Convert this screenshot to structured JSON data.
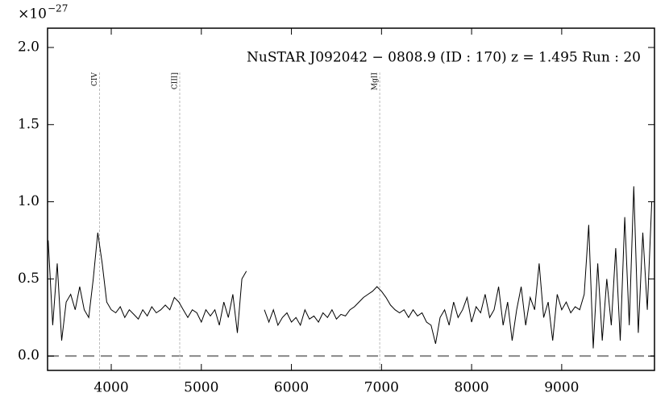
{
  "chart_data": {
    "type": "line",
    "title": "NuSTAR J092042 − 0808.9 (ID : 170)   z = 1.495   Run : 20",
    "offset_label": "×10",
    "offset_exponent": "−27",
    "x": [
      3300,
      3350,
      3400,
      3450,
      3500,
      3550,
      3600,
      3650,
      3700,
      3750,
      3800,
      3850,
      3900,
      3950,
      4000,
      4050,
      4100,
      4150,
      4200,
      4250,
      4300,
      4350,
      4400,
      4450,
      4500,
      4550,
      4600,
      4650,
      4700,
      4750,
      4800,
      4850,
      4900,
      4950,
      5000,
      5050,
      5100,
      5150,
      5200,
      5250,
      5300,
      5350,
      5400,
      5450,
      5500,
      5600,
      5700,
      5750,
      5800,
      5850,
      5900,
      5950,
      6000,
      6050,
      6100,
      6150,
      6200,
      6250,
      6300,
      6350,
      6400,
      6450,
      6500,
      6550,
      6600,
      6650,
      6700,
      6750,
      6800,
      6850,
      6900,
      6950,
      7000,
      7050,
      7100,
      7150,
      7200,
      7250,
      7300,
      7350,
      7400,
      7450,
      7500,
      7550,
      7600,
      7650,
      7700,
      7750,
      7800,
      7850,
      7900,
      7950,
      8000,
      8050,
      8100,
      8150,
      8200,
      8250,
      8300,
      8350,
      8400,
      8450,
      8500,
      8550,
      8600,
      8650,
      8700,
      8750,
      8800,
      8850,
      8900,
      8950,
      9000,
      9050,
      9100,
      9150,
      9200,
      9250,
      9300,
      9350,
      9400,
      9450,
      9500,
      9550,
      9600,
      9650,
      9700,
      9750,
      9800,
      9850,
      9900,
      9950,
      10000
    ],
    "series": [
      {
        "color": "#000000",
        "values": [
          0.75,
          0.2,
          0.6,
          0.1,
          0.35,
          0.4,
          0.3,
          0.45,
          0.3,
          0.25,
          0.5,
          0.8,
          0.6,
          0.35,
          0.3,
          0.28,
          0.32,
          0.25,
          0.3,
          0.27,
          0.24,
          0.3,
          0.26,
          0.32,
          0.28,
          0.3,
          0.33,
          0.3,
          0.38,
          0.35,
          0.3,
          0.25,
          0.3,
          0.28,
          0.22,
          0.3,
          0.26,
          0.3,
          0.2,
          0.35,
          0.25,
          0.4,
          0.15,
          0.5,
          0.55,
          null,
          0.3,
          0.22,
          0.3,
          0.2,
          0.25,
          0.28,
          0.22,
          0.25,
          0.2,
          0.3,
          0.24,
          0.26,
          0.22,
          0.28,
          0.25,
          0.3,
          0.24,
          0.27,
          0.26,
          0.3,
          0.32,
          0.35,
          0.38,
          0.4,
          0.42,
          0.45,
          0.42,
          0.38,
          0.33,
          0.3,
          0.28,
          0.3,
          0.25,
          0.3,
          0.26,
          0.28,
          0.22,
          0.2,
          0.08,
          0.25,
          0.3,
          0.2,
          0.35,
          0.25,
          0.3,
          0.38,
          0.22,
          0.32,
          0.28,
          0.4,
          0.25,
          0.3,
          0.45,
          0.2,
          0.35,
          0.1,
          0.3,
          0.45,
          0.2,
          0.38,
          0.3,
          0.6,
          0.25,
          0.35,
          0.1,
          0.4,
          0.3,
          0.35,
          0.28,
          0.32,
          0.3,
          0.4,
          0.85,
          0.05,
          0.6,
          0.1,
          0.5,
          0.2,
          0.7,
          0.1,
          0.9,
          0.2,
          1.1,
          0.15,
          0.8,
          0.3,
          1.0
        ]
      }
    ],
    "reference_line": 0,
    "lines": [
      {
        "label": "CIV",
        "x": 3870
      },
      {
        "label": "CIII]",
        "x": 4760
      },
      {
        "label": "MgII",
        "x": 6980
      }
    ],
    "xlim": [
      3293,
      10030
    ],
    "ylim": [
      -0.093,
      2.125
    ],
    "xticks": [
      4000,
      5000,
      6000,
      7000,
      8000,
      9000
    ],
    "yticks": [
      {
        "value": 0,
        "label": "0.0"
      },
      {
        "value": 0.5,
        "label": "0.5"
      },
      {
        "value": 1,
        "label": "1.0"
      },
      {
        "value": 1.5,
        "label": "1.5"
      },
      {
        "value": 2,
        "label": "2.0"
      }
    ]
  }
}
